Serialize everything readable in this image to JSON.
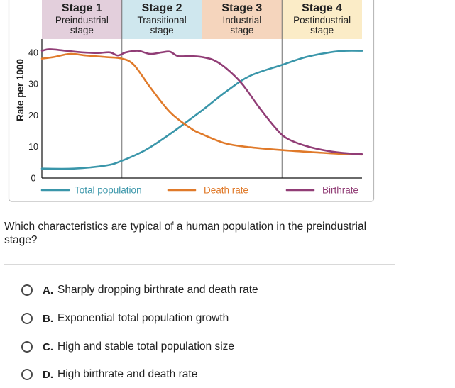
{
  "chart_data": {
    "type": "line",
    "ylabel": "Rate per 1000",
    "xlabel": "",
    "ylim": [
      0,
      45
    ],
    "yticks": [
      0,
      10,
      20,
      30,
      40
    ],
    "x_unit": "stage",
    "xlim": [
      0,
      4
    ],
    "stages": [
      {
        "title": "Stage 1",
        "subtitle_line1": "Preindustrial",
        "subtitle_line2": "stage",
        "color": "#e3cfdc"
      },
      {
        "title": "Stage 2",
        "subtitle_line1": "Transitional",
        "subtitle_line2": "stage",
        "color": "#cfe7ee"
      },
      {
        "title": "Stage 3",
        "subtitle_line1": "Industrial",
        "subtitle_line2": "stage",
        "color": "#f5d5bd"
      },
      {
        "title": "Stage 4",
        "subtitle_line1": "Postindustrial",
        "subtitle_line2": "stage",
        "color": "#fbecc7"
      }
    ],
    "series": [
      {
        "name": "Total population",
        "color": "#3a96aa",
        "x": [
          0,
          0.4,
          0.8,
          1.0,
          1.3,
          1.6,
          2.0,
          2.3,
          2.6,
          3.0,
          3.3,
          3.6,
          3.8,
          4.0
        ],
        "y": [
          3,
          3,
          4,
          5.5,
          9,
          14,
          21.5,
          27.5,
          32.5,
          36,
          38.5,
          40,
          40.5,
          40.5
        ]
      },
      {
        "name": "Death rate",
        "color": "#e07a2a",
        "x": [
          0,
          0.15,
          0.35,
          0.55,
          0.8,
          1.0,
          1.15,
          1.35,
          1.6,
          1.85,
          2.0,
          2.3,
          2.6,
          3.0,
          3.4,
          3.8,
          4.0
        ],
        "y": [
          38,
          38.5,
          39.5,
          39,
          38.5,
          38,
          36,
          29,
          21,
          16,
          14,
          11,
          9.8,
          8.9,
          8.2,
          7.6,
          7.5
        ]
      },
      {
        "name": "Birthrate",
        "color": "#913d76",
        "x": [
          0,
          0.1,
          0.3,
          0.5,
          0.7,
          0.85,
          0.95,
          1.05,
          1.2,
          1.35,
          1.5,
          1.6,
          1.7,
          1.85,
          2.0,
          2.15,
          2.3,
          2.5,
          2.7,
          2.9,
          3.05,
          3.3,
          3.6,
          3.85,
          4.0
        ],
        "y": [
          40.5,
          41,
          40.5,
          40,
          39.8,
          40,
          39,
          40,
          40.5,
          39.5,
          40,
          40.2,
          38.8,
          38.8,
          38.5,
          37.5,
          35,
          30,
          23,
          16.5,
          12.8,
          10.2,
          8.5,
          7.8,
          7.6
        ]
      }
    ],
    "legend_position": "bottom",
    "grid": false
  },
  "question": {
    "text": "Which characteristics are typical of a human population in the preindustrial stage?"
  },
  "options": [
    {
      "letter": "A.",
      "text": "Sharply dropping birthrate and death rate"
    },
    {
      "letter": "B.",
      "text": "Exponential total population growth"
    },
    {
      "letter": "C.",
      "text": "High and stable total population size"
    },
    {
      "letter": "D.",
      "text": "High birthrate and death rate"
    }
  ]
}
